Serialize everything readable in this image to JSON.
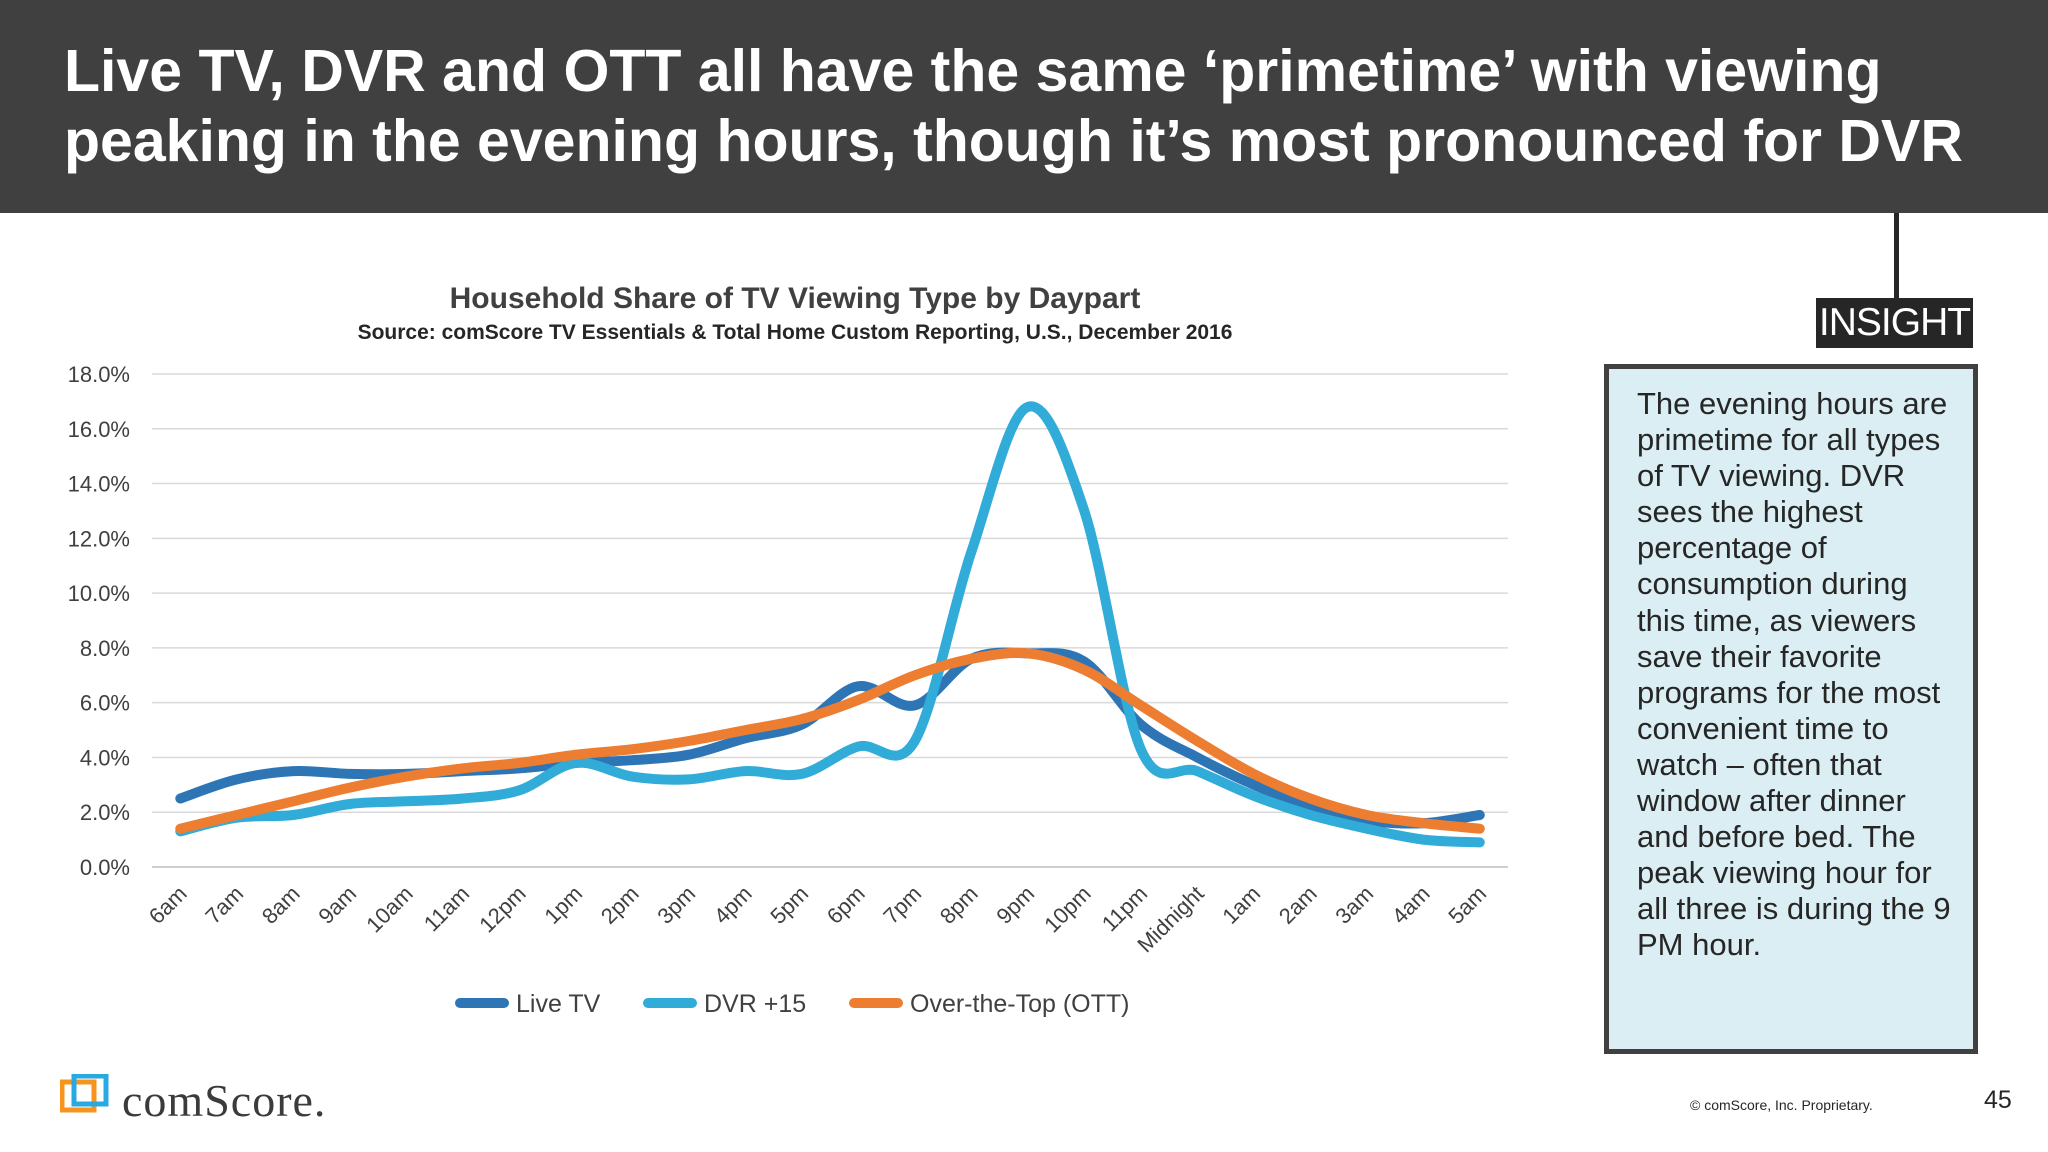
{
  "slide": {
    "title": "Live TV, DVR and OTT all have the same ‘primetime’ with viewing peaking in the evening hours, though it’s most pronounced for DVR",
    "insight_label": "INSIGHT",
    "insight_text": "The evening hours are primetime for all types of TV viewing. DVR sees the highest percentage of consumption during this time, as viewers save their favorite programs for the most convenient time to watch – often that window after dinner and before bed. The peak viewing hour for all three is during the 9 PM hour.",
    "logo_text": "comScore.",
    "copyright": "© comScore, Inc. Proprietary.",
    "page_number": "45"
  },
  "chart_data": {
    "type": "line",
    "title": "Household Share of TV Viewing Type by Daypart",
    "subtitle": "Source: comScore TV Essentials & Total Home Custom Reporting, U.S., December 2016",
    "xlabel": "",
    "ylabel": "",
    "ylim": [
      0,
      18
    ],
    "yticks": [
      "0.0%",
      "2.0%",
      "4.0%",
      "6.0%",
      "8.0%",
      "10.0%",
      "12.0%",
      "14.0%",
      "16.0%",
      "18.0%"
    ],
    "grid": true,
    "legend_position": "bottom",
    "categories": [
      "6am",
      "7am",
      "8am",
      "9am",
      "10am",
      "11am",
      "12pm",
      "1pm",
      "2pm",
      "3pm",
      "4pm",
      "5pm",
      "6pm",
      "7pm",
      "8pm",
      "9pm",
      "10pm",
      "11pm",
      "Midnight",
      "1am",
      "2am",
      "3am",
      "4am",
      "5am"
    ],
    "series": [
      {
        "name": "Live TV",
        "color": "#2e75b6",
        "values": [
          2.5,
          3.2,
          3.5,
          3.4,
          3.4,
          3.5,
          3.6,
          3.8,
          3.9,
          4.1,
          4.7,
          5.2,
          6.6,
          5.9,
          7.6,
          7.8,
          7.5,
          5.2,
          4.0,
          3.0,
          2.2,
          1.7,
          1.6,
          1.9
        ]
      },
      {
        "name": "DVR +15",
        "color": "#31acd8",
        "values": [
          1.3,
          1.8,
          1.9,
          2.3,
          2.4,
          2.5,
          2.8,
          3.8,
          3.3,
          3.2,
          3.5,
          3.4,
          4.4,
          4.6,
          11.5,
          16.8,
          13.0,
          4.3,
          3.5,
          2.6,
          1.9,
          1.4,
          1.0,
          0.9
        ]
      },
      {
        "name": "Over-the-Top (OTT)",
        "color": "#ed7d31",
        "values": [
          1.4,
          1.9,
          2.4,
          2.9,
          3.3,
          3.6,
          3.8,
          4.1,
          4.3,
          4.6,
          5.0,
          5.4,
          6.1,
          7.0,
          7.6,
          7.8,
          7.2,
          5.9,
          4.6,
          3.4,
          2.5,
          1.9,
          1.6,
          1.4
        ]
      }
    ]
  }
}
